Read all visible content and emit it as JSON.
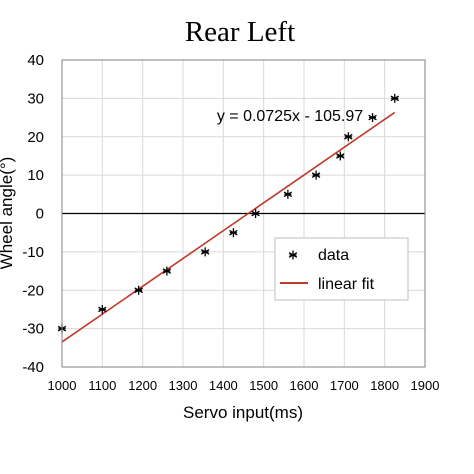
{
  "chart_data": {
    "type": "scatter",
    "title": "Rear Left",
    "xlabel": "Servo input(ms)",
    "ylabel": "Wheel angle(°)",
    "xlim": [
      1000,
      1900
    ],
    "ylim": [
      -40,
      40
    ],
    "xticks": [
      1000,
      1100,
      1200,
      1300,
      1400,
      1500,
      1600,
      1700,
      1800,
      1900
    ],
    "yticks": [
      -40,
      -30,
      -20,
      -10,
      0,
      10,
      20,
      30,
      40
    ],
    "grid": true,
    "legend_position": "lower-right",
    "series": [
      {
        "name": "data",
        "marker": "asterisk",
        "color": "#000000",
        "x": [
          1000,
          1100,
          1190,
          1260,
          1355,
          1425,
          1480,
          1560,
          1630,
          1690,
          1710,
          1770,
          1825
        ],
        "y": [
          -30,
          -25,
          -20,
          -15,
          -10,
          -5,
          0,
          5,
          10,
          15,
          20,
          25,
          30
        ]
      },
      {
        "name": "linear fit",
        "type": "line",
        "color": "#c0392b",
        "slope": 0.0725,
        "intercept": -105.97,
        "x_range": [
          1000,
          1825
        ]
      }
    ],
    "annotations": [
      {
        "text": "y = 0.0725x - 105.97"
      }
    ]
  }
}
